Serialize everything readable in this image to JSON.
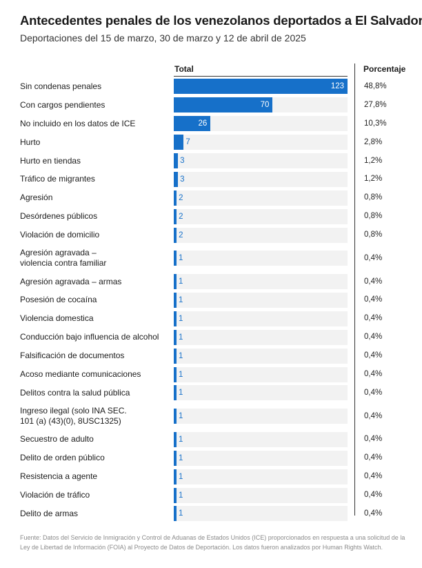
{
  "colors": {
    "bar": "#1670c9",
    "track": "#f2f2f2"
  },
  "chart_data": {
    "type": "bar",
    "orientation": "horizontal",
    "title": "Antecedentes penales de los venezolanos deportados a El Salvador",
    "subtitle": "Deportaciones del 15 de marzo, 30 de marzo y 12 de abril de 2025",
    "value_column_label": "Total",
    "percent_column_label": "Porcentaje",
    "xlim": [
      0,
      123
    ],
    "categories": [
      "Sin condenas penales",
      "Con cargos pendientes",
      "No incluido en los datos de ICE",
      "Hurto",
      "Hurto en tiendas",
      "Tráfico de migrantes",
      "Agresión",
      "Desórdenes públicos",
      "Violación de domicilio",
      "Agresión agravada –\nviolencia contra familiar",
      "Agresión agravada – armas",
      "Posesión de cocaína",
      "Violencia domestica",
      "Conducción bajo influencia de alcohol",
      "Falsificación de documentos",
      "Acoso mediante comunicaciones",
      "Delitos contra la salud pública",
      "Ingreso ilegal (solo INA SEC.\n101 (a) (43)(0), 8USC1325)",
      "Secuestro de adulto",
      "Delito de orden público",
      "Resistencia a agente",
      "Violación de tráfico",
      "Delito de armas"
    ],
    "values": [
      123,
      70,
      26,
      7,
      3,
      3,
      2,
      2,
      2,
      1,
      1,
      1,
      1,
      1,
      1,
      1,
      1,
      1,
      1,
      1,
      1,
      1,
      1
    ],
    "percentages": [
      "48,8%",
      "27,8%",
      "10,3%",
      "2,8%",
      "1,2%",
      "1,2%",
      "0,8%",
      "0,8%",
      "0,8%",
      "0,4%",
      "0,4%",
      "0,4%",
      "0,4%",
      "0,4%",
      "0,4%",
      "0,4%",
      "0,4%",
      "0,4%",
      "0,4%",
      "0,4%",
      "0,4%",
      "0,4%",
      "0,4%"
    ]
  },
  "source_note": "Fuente: Datos del Servicio de Inmigración y Control de Aduanas de Estados Unidos (ICE) proporcionados en respuesta a una solicitud de la Ley de Libertad de Información (FOIA) al Proyecto de Datos de Deportación. Los datos fueron analizados por Human Rights Watch."
}
